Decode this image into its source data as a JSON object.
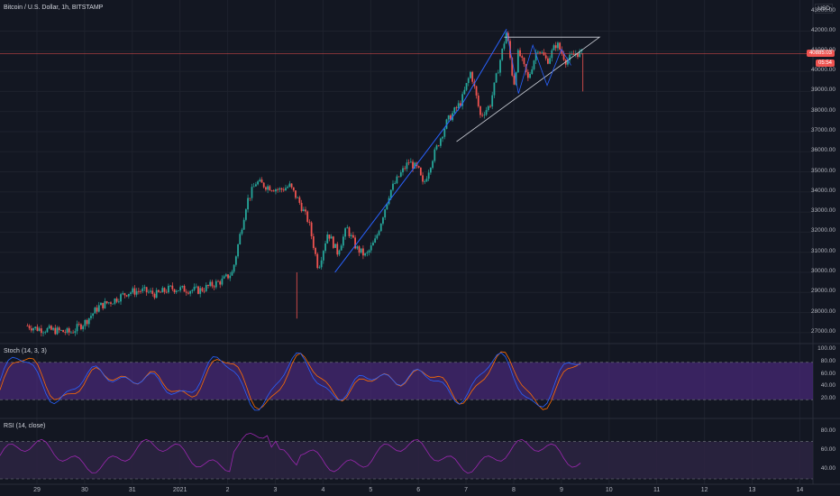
{
  "header": {
    "symbol": "Bitcoin / U.S. Dollar, 1h, BITSTAMP",
    "currency": "USD",
    "stoch_label": "Stoch (14, 3, 3)",
    "rsi_label": "RSI (14, close)"
  },
  "price_axis": {
    "labels": [
      "42000.00",
      "41000.00",
      "40000.00",
      "39000.00",
      "38000.00",
      "37000.00",
      "36000.00",
      "35000.00",
      "34000.00",
      "33000.00",
      "32000.00",
      "31000.00",
      "30000.00",
      "29000.00",
      "28000.00",
      "27000.00"
    ],
    "partial_top": "43000.00",
    "last_price_badge": "40885.03",
    "countdown_badge": "05:54"
  },
  "stoch_axis": {
    "labels": [
      "100.00",
      "80.00",
      "60.00",
      "40.00",
      "20.00"
    ]
  },
  "rsi_axis": {
    "labels": [
      "80.00",
      "60.00",
      "40.00"
    ]
  },
  "time_axis": {
    "labels": [
      "29",
      "30",
      "31",
      "2021",
      "2",
      "3",
      "4",
      "5",
      "6",
      "7",
      "8",
      "9",
      "10",
      "11",
      "12",
      "13",
      "14"
    ]
  },
  "colors": {
    "background": "#131722",
    "grid": "#1e222d",
    "candle_up": "#26a69a",
    "candle_down": "#ef5350",
    "trendline": "#2962ff",
    "triangle": "#d1d4dc",
    "price_line": "#ef5350",
    "stoch_k": "#2962ff",
    "stoch_d": "#ff6d00",
    "stoch_band": "#4a2a7a",
    "rsi_line": "#9c27b0",
    "rsi_band": "#2b2340"
  },
  "chart_data": {
    "type": "candlestick",
    "instrument": "Bitcoin / U.S. Dollar",
    "interval": "1h",
    "exchange": "BITSTAMP",
    "price_range": [
      26500,
      43100
    ],
    "last_price": 40885.03,
    "path_points": [
      [
        28.8,
        27350
      ],
      [
        29.0,
        27200
      ],
      [
        29.4,
        27100
      ],
      [
        29.7,
        27000
      ],
      [
        30.0,
        27500
      ],
      [
        30.3,
        28300
      ],
      [
        30.6,
        28600
      ],
      [
        30.9,
        29000
      ],
      [
        31.2,
        29100
      ],
      [
        31.5,
        28900
      ],
      [
        31.8,
        29200
      ],
      [
        32.1,
        29150
      ],
      [
        32.4,
        29100
      ],
      [
        32.6,
        29300
      ],
      [
        32.9,
        29600
      ],
      [
        33.1,
        30000
      ],
      [
        33.4,
        33500
      ],
      [
        33.6,
        34500
      ],
      [
        33.8,
        34300
      ],
      [
        34.1,
        34100
      ],
      [
        34.3,
        34300
      ],
      [
        34.5,
        33500
      ],
      [
        34.7,
        32500
      ],
      [
        34.9,
        30200
      ],
      [
        35.1,
        32000
      ],
      [
        35.3,
        31000
      ],
      [
        35.5,
        32200
      ],
      [
        35.7,
        31200
      ],
      [
        35.9,
        30800
      ],
      [
        36.1,
        31600
      ],
      [
        36.4,
        34000
      ],
      [
        36.6,
        34800
      ],
      [
        36.8,
        35500
      ],
      [
        37.0,
        35100
      ],
      [
        37.1,
        34300
      ],
      [
        37.3,
        35700
      ],
      [
        37.6,
        37500
      ],
      [
        37.9,
        38500
      ],
      [
        38.1,
        40000
      ],
      [
        38.3,
        37800
      ],
      [
        38.5,
        38300
      ],
      [
        38.7,
        40400
      ],
      [
        38.85,
        42000
      ],
      [
        39.0,
        39300
      ],
      [
        39.1,
        41000
      ],
      [
        39.3,
        39600
      ],
      [
        39.5,
        41200
      ],
      [
        39.7,
        40500
      ],
      [
        39.9,
        41400
      ],
      [
        40.1,
        40500
      ],
      [
        40.3,
        40900
      ],
      [
        40.45,
        40885
      ]
    ],
    "stoch_range": [
      0,
      100
    ],
    "stoch_levels": [
      80,
      20
    ],
    "rsi_range": [
      30,
      90
    ],
    "rsi_levels": [
      70,
      30
    ],
    "annotations": [
      "ascending trendline from the 4 Jan low",
      "ascending triangle near 41700 resistance on 8–10 Jan"
    ]
  }
}
